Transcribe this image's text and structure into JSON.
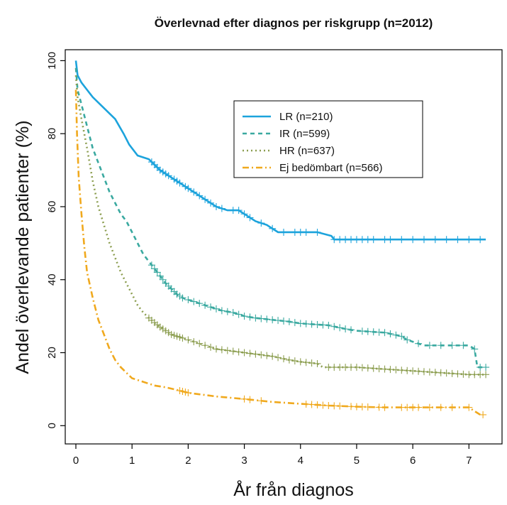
{
  "chart_data": {
    "type": "line",
    "title": "Överlevnad efter diagnos per riskgrupp (n=2012)",
    "xlabel": "År från diagnos",
    "ylabel": "Andel överlevande patienter (%)",
    "xlim": [
      0,
      7.4
    ],
    "ylim": [
      -5,
      103
    ],
    "x_ticks": [
      "0",
      "1",
      "2",
      "3",
      "4",
      "5",
      "6",
      "7"
    ],
    "y_ticks": [
      "0",
      "20",
      "40",
      "60",
      "80",
      "100"
    ],
    "grid": false,
    "legend_position": "top-right",
    "series": [
      {
        "name": "LR (n=210)",
        "color": "#1ca3dc",
        "dash": "solid",
        "points": [
          [
            0,
            100
          ],
          [
            0.03,
            96
          ],
          [
            0.1,
            94
          ],
          [
            0.2,
            92
          ],
          [
            0.3,
            90
          ],
          [
            0.5,
            87
          ],
          [
            0.7,
            84
          ],
          [
            0.85,
            80
          ],
          [
            0.95,
            77
          ],
          [
            1.1,
            74
          ],
          [
            1.3,
            73
          ],
          [
            1.5,
            70
          ],
          [
            1.7,
            68
          ],
          [
            1.9,
            66
          ],
          [
            2.1,
            64
          ],
          [
            2.3,
            62
          ],
          [
            2.5,
            60
          ],
          [
            2.7,
            59
          ],
          [
            2.9,
            59
          ],
          [
            3.0,
            58
          ],
          [
            3.2,
            56
          ],
          [
            3.4,
            55
          ],
          [
            3.6,
            53
          ],
          [
            3.9,
            53
          ],
          [
            4.3,
            53
          ],
          [
            4.55,
            52
          ],
          [
            4.6,
            51
          ],
          [
            5.0,
            51
          ],
          [
            6.0,
            51
          ],
          [
            7.0,
            51
          ],
          [
            7.3,
            51
          ]
        ],
        "censor_x": [
          1.35,
          1.4,
          1.45,
          1.5,
          1.55,
          1.6,
          1.65,
          1.75,
          1.8,
          1.85,
          1.95,
          2.0,
          2.1,
          2.2,
          2.3,
          2.4,
          2.5,
          2.6,
          2.8,
          2.9,
          3.0,
          3.1,
          3.3,
          3.5,
          3.7,
          3.9,
          4.0,
          4.1,
          4.3,
          4.6,
          4.7,
          4.8,
          4.9,
          5.0,
          5.1,
          5.2,
          5.3,
          5.5,
          5.6,
          5.8,
          6.0,
          6.2,
          6.4,
          6.6,
          6.8,
          7.0,
          7.2
        ]
      },
      {
        "name": "IR (n=599)",
        "color": "#3aa9a0",
        "dash": "6 5",
        "points": [
          [
            0,
            98
          ],
          [
            0.03,
            92
          ],
          [
            0.1,
            88
          ],
          [
            0.2,
            82
          ],
          [
            0.3,
            76
          ],
          [
            0.4,
            72
          ],
          [
            0.5,
            68
          ],
          [
            0.6,
            64
          ],
          [
            0.7,
            61
          ],
          [
            0.8,
            58
          ],
          [
            0.9,
            56
          ],
          [
            1.0,
            53
          ],
          [
            1.1,
            50
          ],
          [
            1.2,
            47
          ],
          [
            1.3,
            45
          ],
          [
            1.4,
            43
          ],
          [
            1.5,
            41
          ],
          [
            1.6,
            39
          ],
          [
            1.7,
            37.5
          ],
          [
            1.8,
            36
          ],
          [
            1.9,
            35
          ],
          [
            2.0,
            34.5
          ],
          [
            2.2,
            33.5
          ],
          [
            2.4,
            32.5
          ],
          [
            2.6,
            31.5
          ],
          [
            2.8,
            31
          ],
          [
            3.0,
            30
          ],
          [
            3.2,
            29.5
          ],
          [
            3.5,
            29
          ],
          [
            3.8,
            28.5
          ],
          [
            4.0,
            28
          ],
          [
            4.5,
            27.5
          ],
          [
            4.8,
            26.5
          ],
          [
            5.0,
            26
          ],
          [
            5.5,
            25.5
          ],
          [
            5.8,
            24.5
          ],
          [
            5.9,
            23.5
          ],
          [
            6.0,
            23
          ],
          [
            6.2,
            22
          ],
          [
            6.5,
            22
          ],
          [
            7.0,
            22
          ],
          [
            7.1,
            21
          ],
          [
            7.15,
            16
          ],
          [
            7.3,
            16
          ]
        ],
        "censor_x": [
          1.35,
          1.4,
          1.45,
          1.5,
          1.55,
          1.6,
          1.65,
          1.7,
          1.75,
          1.8,
          1.85,
          1.9,
          2.0,
          2.1,
          2.2,
          2.3,
          2.4,
          2.5,
          2.6,
          2.7,
          2.8,
          2.9,
          3.0,
          3.1,
          3.2,
          3.3,
          3.4,
          3.5,
          3.6,
          3.7,
          3.8,
          3.9,
          4.0,
          4.1,
          4.2,
          4.3,
          4.4,
          4.5,
          4.6,
          4.7,
          4.8,
          4.9,
          5.1,
          5.2,
          5.3,
          5.4,
          5.5,
          5.6,
          5.7,
          5.8,
          5.9,
          6.1,
          6.3,
          6.5,
          6.7,
          6.9,
          7.1,
          7.2,
          7.3
        ]
      },
      {
        "name": "HR (n=637)",
        "color": "#8c9e50",
        "dash": "2 4",
        "points": [
          [
            0,
            96
          ],
          [
            0.03,
            90
          ],
          [
            0.1,
            84
          ],
          [
            0.2,
            76
          ],
          [
            0.3,
            67
          ],
          [
            0.4,
            60
          ],
          [
            0.5,
            55
          ],
          [
            0.6,
            50
          ],
          [
            0.7,
            46
          ],
          [
            0.8,
            42
          ],
          [
            0.9,
            39
          ],
          [
            1.0,
            36
          ],
          [
            1.1,
            33
          ],
          [
            1.2,
            31
          ],
          [
            1.3,
            29.5
          ],
          [
            1.5,
            27
          ],
          [
            1.7,
            25
          ],
          [
            1.9,
            24
          ],
          [
            2.1,
            23
          ],
          [
            2.3,
            22
          ],
          [
            2.5,
            21
          ],
          [
            3.0,
            20
          ],
          [
            3.5,
            19
          ],
          [
            3.8,
            18
          ],
          [
            4.0,
            17.5
          ],
          [
            4.3,
            17
          ],
          [
            4.4,
            16
          ],
          [
            5.0,
            16
          ],
          [
            5.5,
            15.5
          ],
          [
            6.0,
            15
          ],
          [
            6.5,
            14.5
          ],
          [
            7.0,
            14
          ],
          [
            7.3,
            14
          ]
        ],
        "censor_x": [
          1.3,
          1.35,
          1.4,
          1.45,
          1.5,
          1.55,
          1.6,
          1.65,
          1.7,
          1.75,
          1.8,
          1.85,
          1.9,
          2.0,
          2.1,
          2.2,
          2.3,
          2.4,
          2.5,
          2.6,
          2.7,
          2.8,
          2.9,
          3.0,
          3.1,
          3.2,
          3.3,
          3.4,
          3.5,
          3.6,
          3.7,
          3.8,
          3.9,
          4.0,
          4.1,
          4.2,
          4.3,
          4.5,
          4.6,
          4.7,
          4.8,
          4.9,
          5.0,
          5.1,
          5.2,
          5.3,
          5.4,
          5.5,
          5.6,
          5.7,
          5.8,
          5.9,
          6.0,
          6.1,
          6.2,
          6.3,
          6.4,
          6.5,
          6.6,
          6.7,
          6.8,
          6.9,
          7.0,
          7.1,
          7.2,
          7.3
        ]
      },
      {
        "name": "Ej bedömbart (n=566)",
        "color": "#f0a91e",
        "dash": "9 4 2 4",
        "points": [
          [
            0,
            92
          ],
          [
            0.02,
            80
          ],
          [
            0.05,
            68
          ],
          [
            0.1,
            58
          ],
          [
            0.15,
            49
          ],
          [
            0.2,
            42
          ],
          [
            0.3,
            35
          ],
          [
            0.4,
            29
          ],
          [
            0.5,
            25
          ],
          [
            0.6,
            21
          ],
          [
            0.7,
            18
          ],
          [
            0.8,
            16
          ],
          [
            0.9,
            14.5
          ],
          [
            1.0,
            13
          ],
          [
            1.2,
            12
          ],
          [
            1.4,
            11
          ],
          [
            1.6,
            10.5
          ],
          [
            1.8,
            9.8
          ],
          [
            2.0,
            9
          ],
          [
            2.5,
            8
          ],
          [
            3.0,
            7.3
          ],
          [
            3.5,
            6.5
          ],
          [
            4.0,
            6
          ],
          [
            4.5,
            5.5
          ],
          [
            5.0,
            5.2
          ],
          [
            5.5,
            5
          ],
          [
            6.0,
            5
          ],
          [
            6.5,
            5
          ],
          [
            7.0,
            5
          ],
          [
            7.1,
            4
          ],
          [
            7.2,
            3
          ]
        ],
        "censor_x": [
          1.85,
          1.9,
          1.95,
          2.0,
          3.0,
          3.1,
          3.3,
          4.1,
          4.2,
          4.3,
          4.4,
          4.5,
          4.6,
          4.7,
          4.9,
          5.0,
          5.1,
          5.2,
          5.4,
          5.5,
          5.8,
          5.9,
          6.0,
          6.1,
          6.3,
          6.5,
          6.7,
          7.0,
          7.25
        ]
      }
    ]
  }
}
